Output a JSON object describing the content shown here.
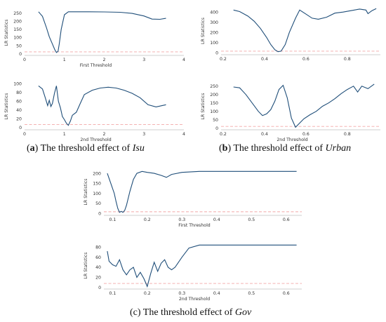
{
  "captions": [
    {
      "prefix": "(",
      "letter": "a",
      "mid": ") The threshold effect of ",
      "var": "Isu"
    },
    {
      "prefix": "(",
      "letter": "b",
      "mid": ") The threshold effect of ",
      "var": "Urban"
    },
    {
      "prefix": "",
      "letter": "",
      "mid": "(c) The threshold effect of ",
      "var": "Gov"
    }
  ],
  "chart_data": [
    {
      "type": "line",
      "panel": "a-top",
      "xlabel": "First Threshold",
      "ylabel": "LR Statistics",
      "xlim": [
        0,
        4
      ],
      "ylim": [
        -10,
        270
      ],
      "xticks": [
        0,
        1,
        2,
        3,
        4
      ],
      "yticks": [
        0,
        50,
        100,
        150,
        200,
        250
      ],
      "reference_line": 12,
      "grid": false,
      "x": [
        0.35,
        0.45,
        0.55,
        0.62,
        0.7,
        0.76,
        0.8,
        0.84,
        0.87,
        0.92,
        1.0,
        1.1,
        1.3,
        1.6,
        2.0,
        2.4,
        2.7,
        3.0,
        3.2,
        3.4,
        3.55
      ],
      "y": [
        258,
        230,
        160,
        105,
        60,
        25,
        8,
        15,
        60,
        150,
        240,
        258,
        258,
        258,
        257,
        255,
        248,
        232,
        213,
        212,
        218
      ]
    },
    {
      "type": "line",
      "panel": "a-bottom",
      "xlabel": "2nd Threshold",
      "ylabel": "LR Statistics",
      "xlim": [
        0,
        4
      ],
      "ylim": [
        -5,
        102
      ],
      "xticks": [
        0,
        1,
        2,
        3,
        4
      ],
      "yticks": [
        0,
        20,
        40,
        60,
        80,
        100
      ],
      "reference_line": 7,
      "grid": false,
      "x": [
        0.35,
        0.45,
        0.52,
        0.58,
        0.62,
        0.66,
        0.7,
        0.75,
        0.8,
        0.85,
        0.9,
        0.95,
        1.0,
        1.05,
        1.1,
        1.15,
        1.2,
        1.3,
        1.4,
        1.5,
        1.7,
        1.9,
        2.1,
        2.3,
        2.5,
        2.7,
        2.9,
        3.1,
        3.3,
        3.55
      ],
      "y": [
        95,
        88,
        68,
        50,
        62,
        48,
        55,
        78,
        95,
        60,
        45,
        25,
        18,
        10,
        5,
        15,
        28,
        35,
        55,
        75,
        85,
        90,
        92,
        90,
        85,
        78,
        68,
        52,
        47,
        52
      ]
    },
    {
      "type": "line",
      "panel": "b-top",
      "xlabel": "",
      "ylabel": "LR Statistics",
      "xlim": [
        0.19,
        0.96
      ],
      "ylim": [
        -20,
        450
      ],
      "xticks": [
        0.2,
        0.4,
        0.6,
        0.8
      ],
      "yticks": [
        0,
        100,
        200,
        300,
        400
      ],
      "reference_line": 15,
      "grid": false,
      "x": [
        0.25,
        0.28,
        0.32,
        0.35,
        0.38,
        0.41,
        0.43,
        0.45,
        0.465,
        0.48,
        0.5,
        0.52,
        0.55,
        0.57,
        0.6,
        0.63,
        0.66,
        0.7,
        0.74,
        0.78,
        0.82,
        0.86,
        0.89,
        0.9,
        0.92,
        0.94
      ],
      "y": [
        420,
        405,
        360,
        310,
        240,
        150,
        80,
        30,
        10,
        15,
        80,
        200,
        340,
        420,
        380,
        340,
        330,
        350,
        390,
        400,
        415,
        430,
        420,
        385,
        415,
        435
      ]
    },
    {
      "type": "line",
      "panel": "b-bottom",
      "xlabel": "2nd Threshold",
      "ylabel": "LR Statistics",
      "xlim": [
        0.19,
        0.96
      ],
      "ylim": [
        -10,
        270
      ],
      "xticks": [
        0.2,
        0.4,
        0.6,
        0.8
      ],
      "yticks": [
        0,
        50,
        100,
        150,
        200,
        250
      ],
      "reference_line": 10,
      "grid": false,
      "x": [
        0.25,
        0.28,
        0.31,
        0.34,
        0.37,
        0.39,
        0.41,
        0.43,
        0.45,
        0.47,
        0.49,
        0.51,
        0.53,
        0.55,
        0.57,
        0.59,
        0.62,
        0.65,
        0.68,
        0.71,
        0.74,
        0.77,
        0.8,
        0.83,
        0.85,
        0.87,
        0.9,
        0.93
      ],
      "y": [
        245,
        240,
        200,
        150,
        100,
        75,
        85,
        110,
        160,
        230,
        255,
        180,
        60,
        5,
        30,
        55,
        80,
        100,
        130,
        150,
        175,
        205,
        230,
        250,
        215,
        250,
        235,
        262
      ]
    },
    {
      "type": "line",
      "panel": "c-top",
      "xlabel": "First Threshold",
      "ylabel": "LR Statistics",
      "xlim": [
        0.075,
        0.645
      ],
      "ylim": [
        -10,
        225
      ],
      "xticks": [
        0.1,
        0.2,
        0.3,
        0.4,
        0.5,
        0.6
      ],
      "yticks": [
        0,
        50,
        100,
        150,
        200
      ],
      "reference_line": 8,
      "grid": false,
      "x": [
        0.085,
        0.095,
        0.105,
        0.11,
        0.115,
        0.12,
        0.125,
        0.13,
        0.135,
        0.14,
        0.15,
        0.16,
        0.17,
        0.185,
        0.2,
        0.22,
        0.24,
        0.255,
        0.27,
        0.3,
        0.35,
        0.4,
        0.45,
        0.5,
        0.55,
        0.6,
        0.63
      ],
      "y": [
        200,
        150,
        100,
        60,
        25,
        5,
        10,
        5,
        15,
        40,
        110,
        170,
        200,
        210,
        205,
        200,
        190,
        180,
        195,
        205,
        210,
        210,
        210,
        210,
        210,
        210,
        210
      ]
    },
    {
      "type": "line",
      "panel": "c-bottom",
      "xlabel": "2nd Threshold",
      "ylabel": "LR Statistics",
      "xlim": [
        0.075,
        0.645
      ],
      "ylim": [
        -3,
        90
      ],
      "xticks": [
        0.1,
        0.2,
        0.3,
        0.4,
        0.5,
        0.6
      ],
      "yticks": [
        0,
        20,
        40,
        60,
        80
      ],
      "reference_line": 8,
      "grid": false,
      "x": [
        0.085,
        0.09,
        0.1,
        0.11,
        0.12,
        0.13,
        0.14,
        0.15,
        0.16,
        0.17,
        0.18,
        0.19,
        0.195,
        0.2,
        0.21,
        0.22,
        0.23,
        0.24,
        0.25,
        0.26,
        0.27,
        0.28,
        0.3,
        0.32,
        0.35,
        0.4,
        0.45,
        0.5,
        0.55,
        0.6,
        0.63
      ],
      "y": [
        72,
        52,
        45,
        42,
        55,
        35,
        25,
        35,
        40,
        20,
        30,
        18,
        10,
        2,
        28,
        50,
        32,
        48,
        55,
        40,
        35,
        40,
        60,
        78,
        84,
        84,
        84,
        84,
        84,
        84,
        84
      ]
    }
  ]
}
